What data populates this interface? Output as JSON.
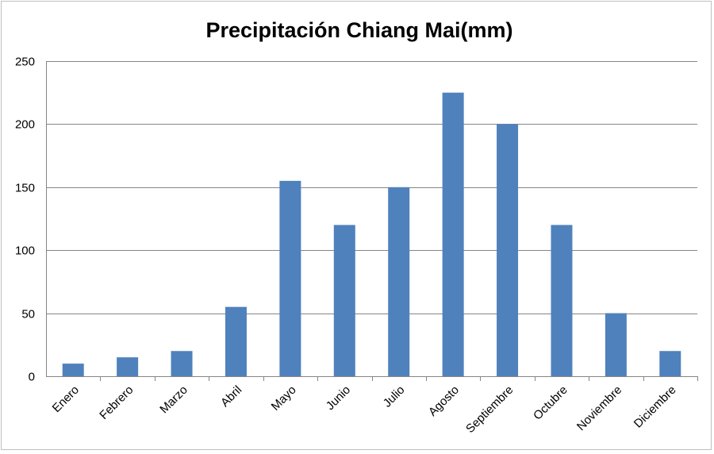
{
  "chart_data": {
    "type": "bar",
    "title": "Precipitación Chiang Mai(mm)",
    "xlabel": "",
    "ylabel": "",
    "categories": [
      "Enero",
      "Febrero",
      "Marzo",
      "Abril",
      "Mayo",
      "Junio",
      "Julio",
      "Agosto",
      "Septiembre",
      "Octubre",
      "Noviembre",
      "Diciembre"
    ],
    "values": [
      10,
      15,
      20,
      55,
      155,
      120,
      150,
      225,
      200,
      120,
      50,
      20
    ],
    "ylim": [
      0,
      250
    ],
    "yticks": [
      0,
      50,
      100,
      150,
      200,
      250
    ],
    "grid": true,
    "legend": "none",
    "bar_color": "#4f81bd",
    "grid_color": "#868686"
  }
}
